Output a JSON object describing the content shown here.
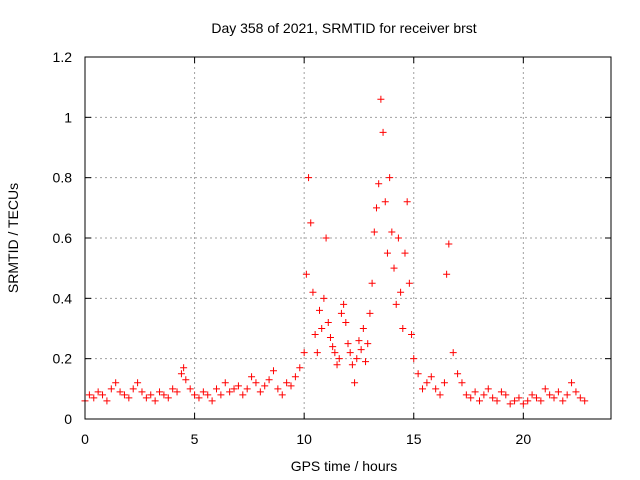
{
  "chart_data": {
    "type": "scatter",
    "title": "Day 358 of 2021, SRMTID for receiver brst",
    "xlabel": "GPS time / hours",
    "ylabel": "SRMTID / TECUs",
    "xlim": [
      0,
      24
    ],
    "ylim": [
      0,
      1.2
    ],
    "xticks": [
      0,
      5,
      10,
      15,
      20
    ],
    "yticks": [
      0,
      0.2,
      0.4,
      0.6,
      0.8,
      1,
      1.2
    ],
    "ytick_labels": [
      "0",
      "0.2",
      "0.4",
      "0.6",
      "0.8",
      "1",
      "1.2"
    ],
    "grid": true,
    "marker": "+",
    "color": "#ff0000",
    "series": [
      {
        "name": "SRMTID",
        "x": [
          0.0,
          0.2,
          0.4,
          0.6,
          0.8,
          1.0,
          1.2,
          1.4,
          1.6,
          1.8,
          2.0,
          2.2,
          2.4,
          2.6,
          2.8,
          3.0,
          3.2,
          3.4,
          3.6,
          3.8,
          4.0,
          4.2,
          4.4,
          4.5,
          4.6,
          4.8,
          5.0,
          5.2,
          5.4,
          5.6,
          5.8,
          6.0,
          6.2,
          6.4,
          6.6,
          6.8,
          7.0,
          7.2,
          7.4,
          7.6,
          7.8,
          8.0,
          8.2,
          8.4,
          8.6,
          8.8,
          9.0,
          9.2,
          9.4,
          9.6,
          9.8,
          10.0,
          10.1,
          10.2,
          10.3,
          10.4,
          10.5,
          10.6,
          10.7,
          10.8,
          10.9,
          11.0,
          11.1,
          11.2,
          11.3,
          11.4,
          11.5,
          11.6,
          11.7,
          11.8,
          11.9,
          12.0,
          12.1,
          12.2,
          12.3,
          12.4,
          12.5,
          12.6,
          12.7,
          12.8,
          12.9,
          13.0,
          13.1,
          13.2,
          13.3,
          13.4,
          13.5,
          13.6,
          13.7,
          13.8,
          13.9,
          14.0,
          14.1,
          14.2,
          14.3,
          14.4,
          14.5,
          14.6,
          14.7,
          14.8,
          14.9,
          15.0,
          15.2,
          15.4,
          15.6,
          15.8,
          16.0,
          16.2,
          16.4,
          16.5,
          16.6,
          16.8,
          17.0,
          17.2,
          17.4,
          17.6,
          17.8,
          18.0,
          18.2,
          18.4,
          18.6,
          18.8,
          19.0,
          19.2,
          19.4,
          19.6,
          19.8,
          20.0,
          20.2,
          20.4,
          20.6,
          20.8,
          21.0,
          21.2,
          21.4,
          21.6,
          21.8,
          22.0,
          22.2,
          22.4,
          22.6,
          22.8
        ],
        "y": [
          0.06,
          0.08,
          0.07,
          0.09,
          0.08,
          0.06,
          0.1,
          0.12,
          0.09,
          0.08,
          0.07,
          0.1,
          0.12,
          0.09,
          0.07,
          0.08,
          0.06,
          0.09,
          0.08,
          0.07,
          0.1,
          0.09,
          0.15,
          0.17,
          0.13,
          0.1,
          0.08,
          0.07,
          0.09,
          0.08,
          0.06,
          0.1,
          0.08,
          0.12,
          0.09,
          0.1,
          0.11,
          0.08,
          0.1,
          0.14,
          0.12,
          0.09,
          0.11,
          0.13,
          0.16,
          0.1,
          0.08,
          0.12,
          0.11,
          0.14,
          0.17,
          0.22,
          0.48,
          0.8,
          0.65,
          0.42,
          0.28,
          0.22,
          0.36,
          0.3,
          0.4,
          0.6,
          0.32,
          0.27,
          0.24,
          0.22,
          0.18,
          0.2,
          0.35,
          0.38,
          0.32,
          0.25,
          0.22,
          0.18,
          0.12,
          0.2,
          0.26,
          0.23,
          0.3,
          0.19,
          0.25,
          0.35,
          0.45,
          0.62,
          0.7,
          0.78,
          1.06,
          0.95,
          0.72,
          0.55,
          0.8,
          0.62,
          0.5,
          0.38,
          0.6,
          0.42,
          0.3,
          0.55,
          0.72,
          0.45,
          0.28,
          0.2,
          0.15,
          0.1,
          0.12,
          0.14,
          0.1,
          0.08,
          0.12,
          0.48,
          0.58,
          0.22,
          0.15,
          0.12,
          0.08,
          0.07,
          0.09,
          0.06,
          0.08,
          0.1,
          0.07,
          0.06,
          0.09,
          0.08,
          0.05,
          0.06,
          0.07,
          0.05,
          0.06,
          0.08,
          0.07,
          0.06,
          0.1,
          0.08,
          0.07,
          0.09,
          0.06,
          0.08,
          0.12,
          0.09,
          0.07,
          0.06
        ]
      }
    ]
  }
}
